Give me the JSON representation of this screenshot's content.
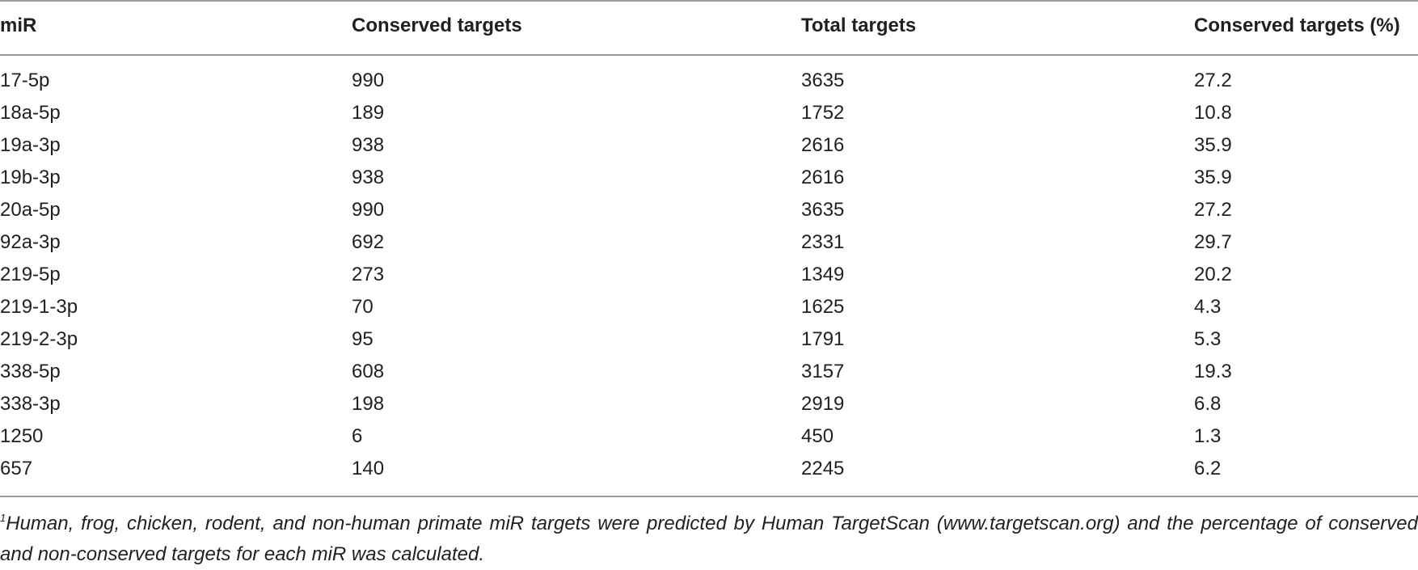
{
  "table": {
    "headers": [
      "miR",
      "Conserved targets",
      "Total targets",
      "Conserved targets (%)"
    ],
    "rows": [
      [
        "17-5p",
        "990",
        "3635",
        "27.2"
      ],
      [
        "18a-5p",
        "189",
        "1752",
        "10.8"
      ],
      [
        "19a-3p",
        "938",
        "2616",
        "35.9"
      ],
      [
        "19b-3p",
        "938",
        "2616",
        "35.9"
      ],
      [
        "20a-5p",
        "990",
        "3635",
        "27.2"
      ],
      [
        "92a-3p",
        "692",
        "2331",
        "29.7"
      ],
      [
        "219-5p",
        "273",
        "1349",
        "20.2"
      ],
      [
        "219-1-3p",
        "70",
        "1625",
        "4.3"
      ],
      [
        "219-2-3p",
        "95",
        "1791",
        "5.3"
      ],
      [
        "338-5p",
        "608",
        "3157",
        "19.3"
      ],
      [
        "338-3p",
        "198",
        "2919",
        "6.8"
      ],
      [
        "1250",
        "6",
        "450",
        "1.3"
      ],
      [
        "657",
        "140",
        "2245",
        "6.2"
      ]
    ]
  },
  "footnote": {
    "marker": "1",
    "text": "Human, frog, chicken, rodent, and non-human primate miR targets were predicted by Human TargetScan (www.targetscan.org) and the percentage of conserved and non-conserved targets for each miR was calculated."
  }
}
